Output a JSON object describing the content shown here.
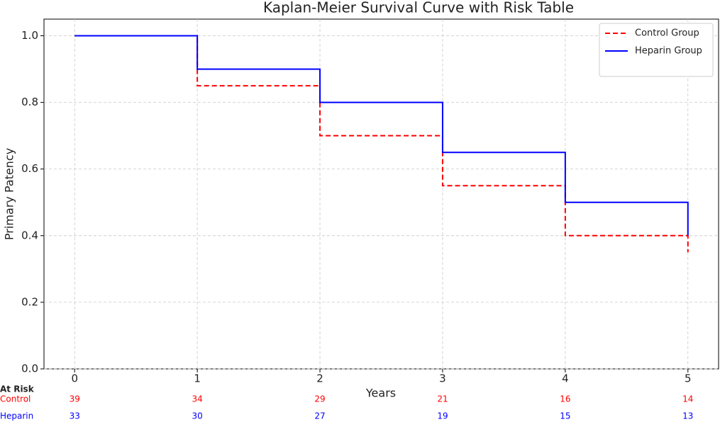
{
  "chart_data": {
    "type": "line",
    "step": "post",
    "title": "Kaplan-Meier Survival Curve with Risk Table",
    "xlabel": "Years",
    "ylabel": "Primary Patency",
    "x": [
      0,
      1,
      2,
      3,
      4,
      5
    ],
    "series": [
      {
        "name": "Control Group",
        "color": "#ff0000",
        "dash": true,
        "values": [
          1.0,
          0.85,
          0.7,
          0.55,
          0.4,
          0.35
        ]
      },
      {
        "name": "Heparin Group",
        "color": "#0000ff",
        "dash": false,
        "values": [
          1.0,
          0.9,
          0.8,
          0.65,
          0.5,
          0.4
        ]
      }
    ],
    "xlim": [
      -0.25,
      5.25
    ],
    "ylim": [
      0,
      1.05
    ],
    "xticks": [
      0,
      1,
      2,
      3,
      4,
      5
    ],
    "yticks": [
      {
        "value": 0,
        "label": "0.0"
      },
      {
        "value": 0.2,
        "label": "0.2"
      },
      {
        "value": 0.4,
        "label": "0.4"
      },
      {
        "value": 0.6,
        "label": "0.6"
      },
      {
        "value": 0.8,
        "label": "0.8"
      },
      {
        "value": 1.0,
        "label": "1.0"
      }
    ],
    "grid": true,
    "legend": "upper right",
    "risk_table": {
      "title": "At Risk",
      "rows": [
        {
          "name": "Control",
          "color": "#ff0000",
          "values": [
            39,
            34,
            29,
            21,
            16,
            14
          ]
        },
        {
          "name": "Heparin",
          "color": "#0000ff",
          "values": [
            33,
            30,
            27,
            19,
            15,
            13
          ]
        }
      ]
    }
  }
}
